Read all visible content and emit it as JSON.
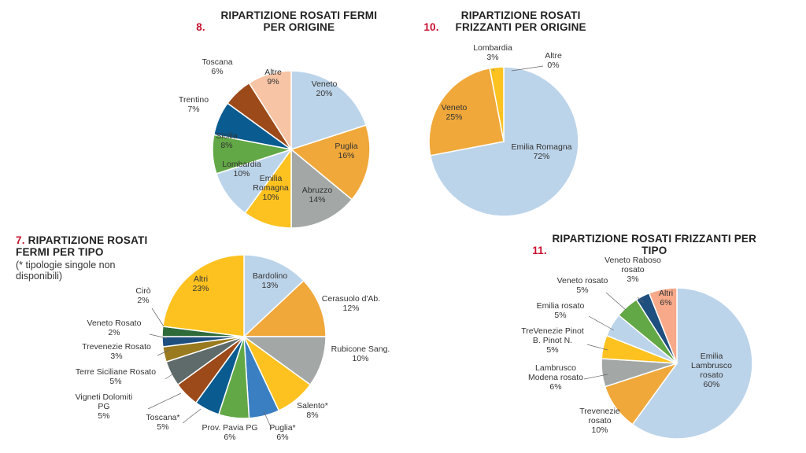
{
  "chart_data": [
    {
      "type": "pie",
      "number": "8.",
      "title": "RIPARTIZIONE ROSATI FERMI PER ORIGINE",
      "slices": [
        {
          "label": "Veneto",
          "value": 20,
          "display": "20%",
          "color": "#bcd4ea"
        },
        {
          "label": "Puglia",
          "value": 16,
          "display": "16%",
          "color": "#f0a83a"
        },
        {
          "label": "Abruzzo",
          "value": 14,
          "display": "14%",
          "color": "#a3a8a6"
        },
        {
          "label": "Emilia Romagna",
          "value": 10,
          "display": "10%",
          "color": "#fdc220"
        },
        {
          "label": "Lombardia",
          "value": 10,
          "display": "10%",
          "color": "#bcd4ea"
        },
        {
          "label": "Sicilia",
          "value": 8,
          "display": "8%",
          "color": "#63a846"
        },
        {
          "label": "Trentino",
          "value": 7,
          "display": "7%",
          "color": "#0a5b8f"
        },
        {
          "label": "Toscana",
          "value": 6,
          "display": "6%",
          "color": "#9c4a1a"
        },
        {
          "label": "Altre",
          "value": 9,
          "display": "9%",
          "color": "#f7c4a5"
        }
      ]
    },
    {
      "type": "pie",
      "number": "10.",
      "title": "RIPARTIZIONE ROSATI FRIZZANTI PER ORIGINE",
      "slices": [
        {
          "label": "Emilia Romagna",
          "value": 72,
          "display": "72%",
          "color": "#bcd4ea"
        },
        {
          "label": "Veneto",
          "value": 25,
          "display": "25%",
          "color": "#f0a83a"
        },
        {
          "label": "Lombardia",
          "value": 3,
          "display": "3%",
          "color": "#fdc220"
        },
        {
          "label": "Altre",
          "value": 0,
          "display": "0%",
          "color": "#f7c4a5"
        }
      ]
    },
    {
      "type": "pie",
      "number": "7.",
      "title": "RIPARTIZIONE ROSATI FERMI PER TIPO",
      "subtitle": "(* tipologie singole non disponibili)",
      "slices": [
        {
          "label": "Bardolino",
          "value": 13,
          "display": "13%",
          "color": "#bcd4ea"
        },
        {
          "label": "Cerasuolo d'Ab.",
          "value": 12,
          "display": "12%",
          "color": "#f0a83a"
        },
        {
          "label": "Rubicone Sang.",
          "value": 10,
          "display": "10%",
          "color": "#a3a8a6"
        },
        {
          "label": "Salento*",
          "value": 8,
          "display": "8%",
          "color": "#fdc220"
        },
        {
          "label": "Puglia*",
          "value": 6,
          "display": "6%",
          "color": "#3a7fc1"
        },
        {
          "label": "Prov. Pavia PG",
          "value": 6,
          "display": "6%",
          "color": "#63a846"
        },
        {
          "label": "Toscana*",
          "value": 5,
          "display": "5%",
          "color": "#0a5b8f"
        },
        {
          "label": "Vigneti Dolomiti PG",
          "value": 5,
          "display": "5%",
          "color": "#9c4a1a"
        },
        {
          "label": "Terre Siciliane Rosato",
          "value": 5,
          "display": "5%",
          "color": "#5e6b6a"
        },
        {
          "label": "Trevenezie Rosato",
          "value": 3,
          "display": "3%",
          "color": "#9a7a1e"
        },
        {
          "label": "Veneto Rosato",
          "value": 2,
          "display": "2%",
          "color": "#1e4f7e"
        },
        {
          "label": "Cirò",
          "value": 2,
          "display": "2%",
          "color": "#2f6b3a"
        },
        {
          "label": "Altri",
          "value": 23,
          "display": "23%",
          "color": "#fdc220"
        }
      ]
    },
    {
      "type": "pie",
      "number": "11.",
      "title": "RIPARTIZIONE ROSATI FRIZZANTI PER TIPO",
      "slices": [
        {
          "label": "Emilia Lambrusco rosato",
          "value": 60,
          "display": "60%",
          "color": "#bcd4ea"
        },
        {
          "label": "Trevenezie rosato",
          "value": 10,
          "display": "10%",
          "color": "#f0a83a"
        },
        {
          "label": "Lambrusco Modena rosato",
          "value": 6,
          "display": "6%",
          "color": "#a3a8a6"
        },
        {
          "label": "TreVenezie Pinot B. Pinot N.",
          "value": 5,
          "display": "5%",
          "color": "#fdc220"
        },
        {
          "label": "Emilia rosato",
          "value": 5,
          "display": "5%",
          "color": "#bcd4ea"
        },
        {
          "label": "Veneto rosato",
          "value": 5,
          "display": "5%",
          "color": "#63a846"
        },
        {
          "label": "Veneto Raboso rosato",
          "value": 3,
          "display": "3%",
          "color": "#1e4f7e"
        },
        {
          "label": "Altri",
          "value": 6,
          "display": "6%",
          "color": "#f7a98a"
        }
      ]
    }
  ]
}
